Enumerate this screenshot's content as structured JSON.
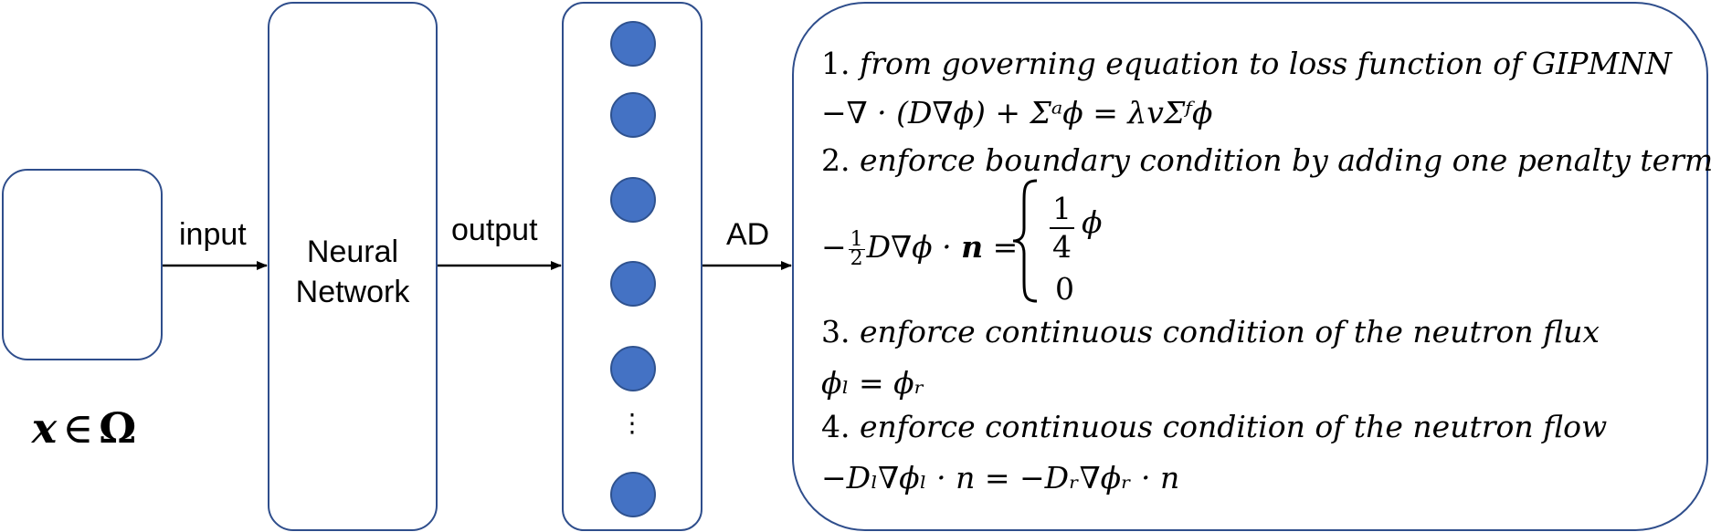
{
  "diagram": {
    "input_box": {
      "expr_var": "x",
      "expr_op": "∈",
      "expr_set": "Ω"
    },
    "arrows": {
      "input_label": "input",
      "output_label": "output",
      "ad_label": "AD"
    },
    "network_box": {
      "line1": "Neural",
      "line2": "Network"
    },
    "output_layer": {
      "node_count": 6,
      "ellipsis": "⋮"
    },
    "loss_box": {
      "step1_num": "1.",
      "step1_text": "from governing equation to loss function of GIPMNN",
      "step2_num": "2.",
      "step2_text": "enforce boundary condition by adding one penalty term",
      "step3_num": "3.",
      "step3_text": "enforce continuous condition of the neutron flux",
      "step4_num": "4.",
      "step4_text": "enforce continuous condition of the neutron flow",
      "eq1": "−∇ · (D∇ϕ) + Σᵃϕ = λvΣᶠϕ",
      "eq2_case_top_num": "1",
      "eq2_case_top_den": "4",
      "eq2_case_top_var": "ϕ",
      "eq2_case_bottom": "0",
      "eq3": "ϕₗ = ϕᵣ",
      "eq4": "−Dₗ∇ϕₗ · n = −Dᵣ∇ϕᵣ · n"
    }
  }
}
